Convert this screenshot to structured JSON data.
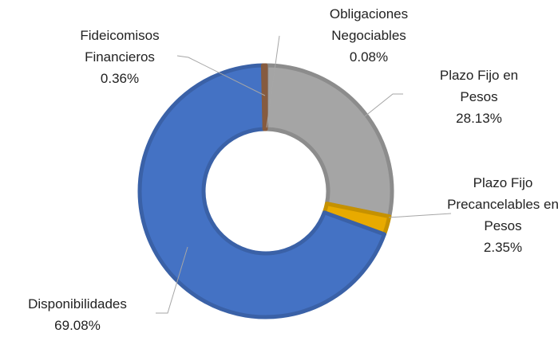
{
  "chart_data": {
    "type": "donut",
    "categories": [
      "Obligaciones Negociables",
      "Plazo Fijo en Pesos",
      "Plazo Fijo Precancelables en Pesos",
      "Disponibilidades",
      "Fideicomisos Financieros"
    ],
    "values": [
      0.08,
      28.13,
      2.35,
      69.08,
      0.36
    ],
    "value_labels": [
      "0.08%",
      "28.13%",
      "2.35%",
      "69.08%",
      "0.36%"
    ],
    "colors": [
      "#ed7d31",
      "#a5a5a5",
      "#e8aa00",
      "#4472c4",
      "#9e6b4a"
    ]
  }
}
